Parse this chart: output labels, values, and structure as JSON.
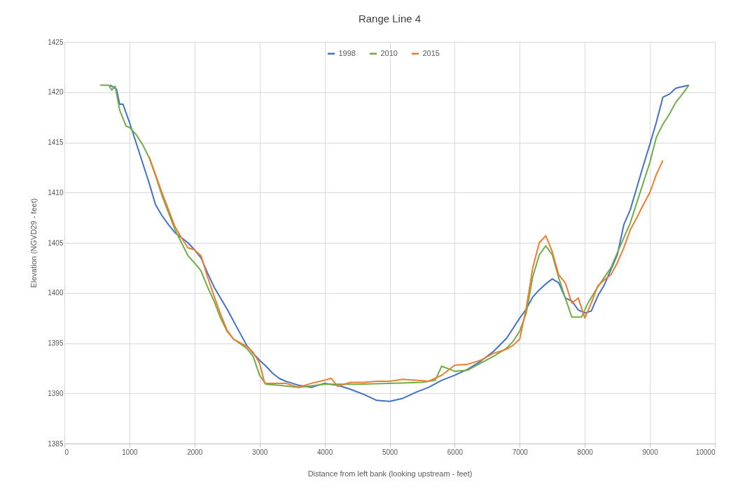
{
  "chart_data": {
    "type": "line",
    "title": "Range Line 4",
    "xlabel": "Distance from left bank (looking upstream - feet)",
    "ylabel": "Elevation (NGVD29 - feet)",
    "xlim": [
      0,
      10000
    ],
    "xticks": [
      0,
      1000,
      2000,
      3000,
      4000,
      5000,
      6000,
      7000,
      8000,
      9000,
      10000
    ],
    "ylim": [
      1385,
      1425
    ],
    "yticks": [
      1385,
      1390,
      1395,
      1400,
      1405,
      1410,
      1415,
      1420,
      1425
    ],
    "grid": true,
    "legend": "top",
    "marker": "none",
    "line_style": "solid",
    "series": [
      {
        "name": "1998",
        "color": "#4472c4",
        "x": [
          700,
          800,
          850,
          900,
          1000,
          1100,
          1200,
          1300,
          1400,
          1500,
          1600,
          1700,
          1800,
          1900,
          2000,
          2100,
          2200,
          2300,
          2400,
          2500,
          2600,
          2700,
          2800,
          2900,
          3000,
          3100,
          3200,
          3300,
          3400,
          3500,
          3600,
          3800,
          4000,
          4200,
          4400,
          4600,
          4800,
          5000,
          5200,
          5400,
          5600,
          5800,
          6000,
          6200,
          6400,
          6600,
          6800,
          7000,
          7100,
          7200,
          7300,
          7400,
          7500,
          7600,
          7700,
          7800,
          7900,
          8000,
          8100,
          8200,
          8300,
          8400,
          8500,
          8600,
          8700,
          8800,
          8900,
          9000,
          9100,
          9200,
          9300,
          9400,
          9600
        ],
        "values": [
          1420.7,
          1420.3,
          1418.8,
          1418.8,
          1417,
          1415,
          1413,
          1411,
          1408.8,
          1407.7,
          1406.8,
          1406,
          1405.5,
          1405,
          1404.3,
          1403.5,
          1402,
          1400.6,
          1399.5,
          1398.4,
          1397.2,
          1396,
          1394.8,
          1394,
          1393.3,
          1392.7,
          1392,
          1391.5,
          1391.2,
          1391,
          1390.8,
          1390.6,
          1391,
          1390.8,
          1390.4,
          1389.9,
          1389.3,
          1389.2,
          1389.5,
          1390.1,
          1390.6,
          1391.3,
          1391.8,
          1392.4,
          1393.2,
          1394.2,
          1395.5,
          1397.5,
          1398.4,
          1399.6,
          1400.3,
          1400.9,
          1401.4,
          1401,
          1399.5,
          1399.2,
          1398.3,
          1398,
          1398.2,
          1399.7,
          1400.8,
          1402.3,
          1403.8,
          1406.8,
          1408.3,
          1410.5,
          1412.7,
          1414.8,
          1417,
          1419.5,
          1419.8,
          1420.4,
          1420.7
        ]
      },
      {
        "name": "2010",
        "color": "#70ad47",
        "x": [
          550,
          680,
          730,
          780,
          850,
          950,
          1000,
          1100,
          1200,
          1300,
          1400,
          1500,
          1600,
          1700,
          1800,
          1900,
          2000,
          2100,
          2200,
          2300,
          2400,
          2500,
          2600,
          2800,
          2900,
          3000,
          3100,
          3300,
          3600,
          4000,
          4500,
          5000,
          5500,
          5700,
          5800,
          6000,
          6200,
          6400,
          6600,
          6800,
          6900,
          7000,
          7100,
          7200,
          7300,
          7400,
          7500,
          7600,
          7700,
          7800,
          7950,
          8050,
          8200,
          8400,
          8600,
          8700,
          8800,
          8900,
          9000,
          9100,
          9200,
          9300,
          9400,
          9500,
          9600
        ],
        "values": [
          1420.7,
          1420.7,
          1420.2,
          1420.6,
          1418.2,
          1416.6,
          1416.5,
          1415.8,
          1414.8,
          1413.5,
          1411.7,
          1409.7,
          1408,
          1406.3,
          1405,
          1403.7,
          1403,
          1402.2,
          1400.6,
          1399.2,
          1397.5,
          1396.2,
          1395.4,
          1394.5,
          1393.7,
          1391.8,
          1390.9,
          1390.8,
          1390.6,
          1390.9,
          1390.9,
          1391,
          1391.1,
          1391.3,
          1392.7,
          1392.2,
          1392.3,
          1393,
          1393.7,
          1394.5,
          1395.2,
          1396.2,
          1398,
          1401.6,
          1403.8,
          1404.7,
          1403.8,
          1401.5,
          1399.5,
          1397.6,
          1397.6,
          1399,
          1400.6,
          1402.5,
          1405.5,
          1407,
          1409,
          1411,
          1413,
          1415.5,
          1416.8,
          1417.8,
          1419,
          1419.8,
          1420.7
        ]
      },
      {
        "name": "2015",
        "color": "#ed7d31",
        "x": [
          1300,
          1400,
          1500,
          1600,
          1700,
          1800,
          1900,
          2000,
          2100,
          2200,
          2300,
          2400,
          2500,
          2600,
          2800,
          2900,
          3000,
          3080,
          3200,
          3400,
          3600,
          3800,
          4000,
          4100,
          4200,
          4400,
          4600,
          4800,
          5000,
          5200,
          5400,
          5600,
          5800,
          6000,
          6200,
          6400,
          6600,
          6800,
          6900,
          7000,
          7100,
          7200,
          7300,
          7400,
          7500,
          7600,
          7700,
          7800,
          7900,
          8000,
          8100,
          8200,
          8300,
          8400,
          8500,
          8600,
          8700,
          8800,
          8900,
          9000,
          9100,
          9200
        ],
        "values": [
          1413.6,
          1411.8,
          1410,
          1408.3,
          1406.6,
          1405.5,
          1404.5,
          1404.3,
          1403.7,
          1401.6,
          1399.7,
          1397.9,
          1396.3,
          1395.4,
          1394.7,
          1394.1,
          1393,
          1391,
          1391,
          1391,
          1390.6,
          1391,
          1391.3,
          1391.5,
          1390.7,
          1391.1,
          1391.1,
          1391.2,
          1391.2,
          1391.4,
          1391.3,
          1391.2,
          1391.8,
          1392.8,
          1392.9,
          1393.3,
          1394,
          1394.4,
          1394.8,
          1395.4,
          1398.5,
          1402.5,
          1405,
          1405.7,
          1404.1,
          1401.8,
          1401,
          1399,
          1399.5,
          1397.5,
          1399,
          1400.7,
          1401.3,
          1401.8,
          1403,
          1404.5,
          1406.3,
          1407.5,
          1408.8,
          1410,
          1411.8,
          1413.2
        ]
      }
    ]
  }
}
